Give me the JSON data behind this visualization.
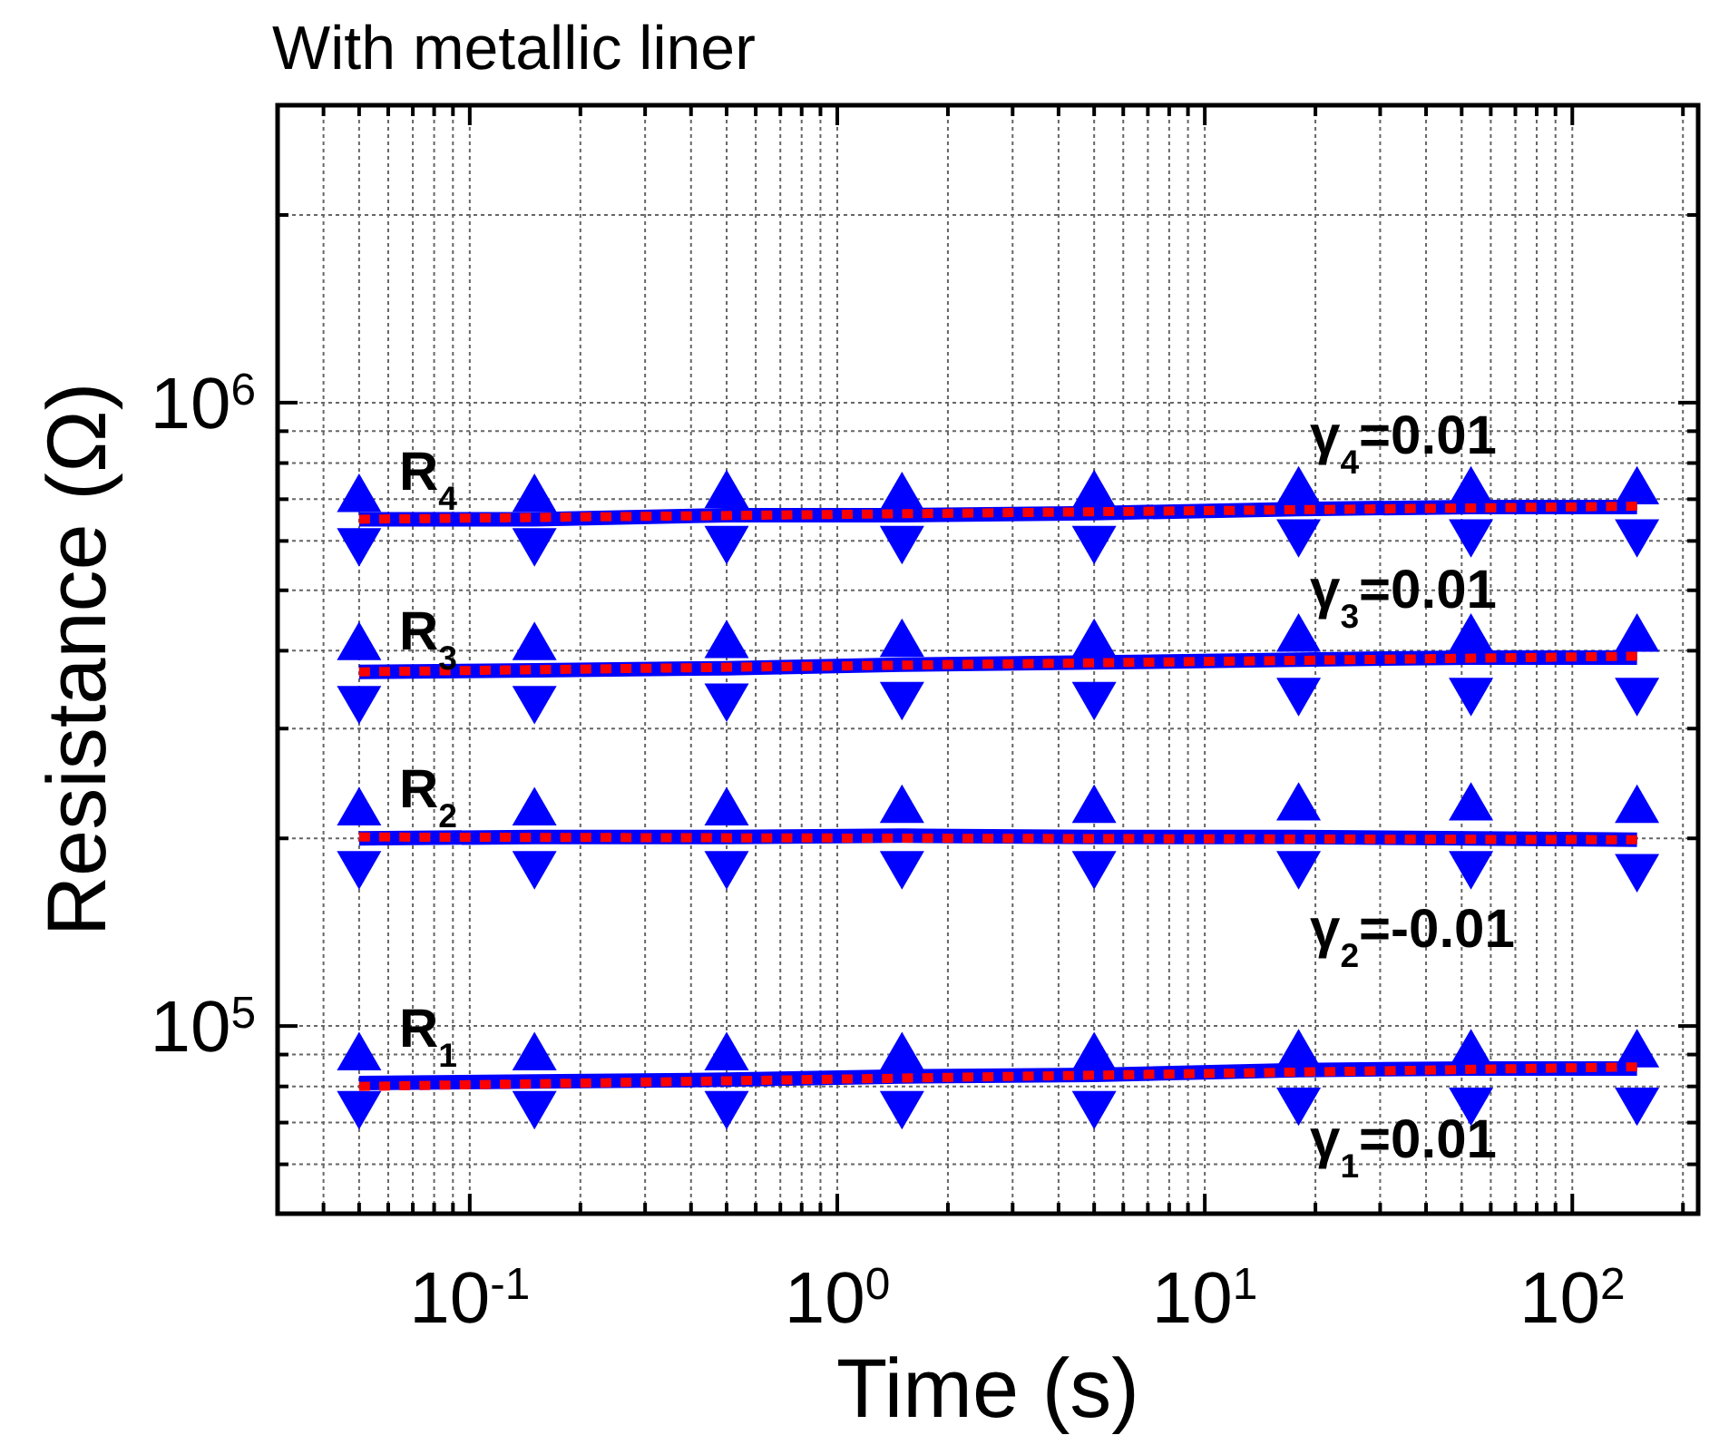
{
  "chart_data": {
    "type": "line",
    "title": "With metallic liner",
    "xlabel": "Time (s)",
    "ylabel": "Resistance (Ω)",
    "log": "xy",
    "grid": true,
    "xlim": [
      0.03,
      220
    ],
    "ylim": [
      50000,
      3000000
    ],
    "xticks": [
      {
        "value": 0.03,
        "label": null
      },
      {
        "value": 0.04,
        "label": null
      },
      {
        "value": 0.05,
        "label": null
      },
      {
        "value": 0.06,
        "label": null
      },
      {
        "value": 0.07,
        "label": null
      },
      {
        "value": 0.08,
        "label": null
      },
      {
        "value": 0.09,
        "label": null
      },
      {
        "value": 0.1,
        "label": "10$^{-1}$"
      },
      {
        "value": 0.2,
        "label": null
      },
      {
        "value": 0.3,
        "label": null
      },
      {
        "value": 0.4,
        "label": null
      },
      {
        "value": 0.5,
        "label": null
      },
      {
        "value": 0.6,
        "label": null
      },
      {
        "value": 0.7,
        "label": null
      },
      {
        "value": 0.8,
        "label": null
      },
      {
        "value": 0.9,
        "label": null
      },
      {
        "value": 1,
        "label": "10$^{0}$"
      },
      {
        "value": 2,
        "label": null
      },
      {
        "value": 3,
        "label": null
      },
      {
        "value": 4,
        "label": null
      },
      {
        "value": 5,
        "label": null
      },
      {
        "value": 6,
        "label": null
      },
      {
        "value": 7,
        "label": null
      },
      {
        "value": 8,
        "label": null
      },
      {
        "value": 9,
        "label": null
      },
      {
        "value": 10,
        "label": "10$^{1}$"
      },
      {
        "value": 20,
        "label": null
      },
      {
        "value": 30,
        "label": null
      },
      {
        "value": 40,
        "label": null
      },
      {
        "value": 50,
        "label": null
      },
      {
        "value": 60,
        "label": null
      },
      {
        "value": 70,
        "label": null
      },
      {
        "value": 80,
        "label": null
      },
      {
        "value": 90,
        "label": null
      },
      {
        "value": 100,
        "label": "10$^{2}$"
      },
      {
        "value": 200,
        "label": null
      }
    ],
    "yticks": [
      {
        "value": 50000,
        "label": null
      },
      {
        "value": 60000,
        "label": null
      },
      {
        "value": 70000,
        "label": null
      },
      {
        "value": 80000,
        "label": null
      },
      {
        "value": 90000,
        "label": null
      },
      {
        "value": 100000,
        "label": "10$^{5}$"
      },
      {
        "value": 200000,
        "label": null
      },
      {
        "value": 300000,
        "label": null
      },
      {
        "value": 400000,
        "label": null
      },
      {
        "value": 500000,
        "label": null
      },
      {
        "value": 600000,
        "label": null
      },
      {
        "value": 700000,
        "label": null
      },
      {
        "value": 800000,
        "label": null
      },
      {
        "value": 900000,
        "label": null
      },
      {
        "value": 1000000,
        "label": "10$^{6}$"
      },
      {
        "value": 2000000,
        "label": null
      },
      {
        "value": 3000000,
        "label": null
      }
    ],
    "series": [
      {
        "color": "#0000ff",
        "line_style": "solid",
        "x": [
          0.05,
          0.15,
          0.5,
          1.5,
          5,
          18,
          53,
          150
        ],
        "values": [
          81000,
          81500,
          82000,
          83000,
          83500,
          85000,
          85500,
          85500
        ]
      },
      {
        "type": "scatter",
        "color": "#0000ff",
        "marker": "triangle",
        "x": [
          0.05,
          0.15,
          0.5,
          1.5,
          5,
          18,
          53,
          150
        ],
        "values": [
          89000,
          89000,
          89000,
          89000,
          89000,
          90000,
          90000,
          90000
        ]
      },
      {
        "type": "scatter",
        "color": "#0000ff",
        "marker": "triangle",
        "x": [
          0.05,
          0.15,
          0.5,
          1.5,
          5,
          18,
          53,
          150
        ],
        "values": [
          75000,
          75000,
          75000,
          75000,
          75000,
          76000,
          76000,
          76000
        ]
      },
      {
        "color": "#0000ff",
        "line_style": "solid",
        "x": [
          0.05,
          0.15,
          0.5,
          1.5,
          5,
          18,
          53,
          150
        ],
        "values": [
          200000,
          201000,
          201000,
          202000,
          201000,
          201000,
          200000,
          199000
        ]
      },
      {
        "type": "scatter",
        "color": "#0000ff",
        "marker": "triangle",
        "x": [
          0.05,
          0.15,
          0.5,
          1.5,
          5,
          18,
          53,
          150
        ],
        "values": [
          220000,
          220000,
          220000,
          222000,
          222000,
          224000,
          224000,
          222000
        ]
      },
      {
        "type": "scatter",
        "color": "#0000ff",
        "marker": "triangle",
        "x": [
          0.05,
          0.15,
          0.5,
          1.5,
          5,
          18,
          53,
          150
        ],
        "values": [
          182000,
          182000,
          182000,
          182000,
          182000,
          182000,
          182000,
          180000
        ]
      },
      {
        "color": "#0000ff",
        "line_style": "solid",
        "x": [
          0.05,
          0.15,
          0.5,
          1.5,
          5,
          18,
          53,
          150
        ],
        "values": [
          370000,
          372000,
          375000,
          380000,
          383000,
          387000,
          390000,
          390000
        ]
      },
      {
        "type": "scatter",
        "color": "#0000ff",
        "marker": "triangle",
        "x": [
          0.05,
          0.15,
          0.5,
          1.5,
          5,
          18,
          53,
          150
        ],
        "values": [
          405000,
          405000,
          408000,
          410000,
          410000,
          418000,
          418000,
          418000
        ]
      },
      {
        "type": "scatter",
        "color": "#0000ff",
        "marker": "triangle",
        "x": [
          0.05,
          0.15,
          0.5,
          1.5,
          5,
          18,
          53,
          150
        ],
        "values": [
          335000,
          335000,
          338000,
          340000,
          340000,
          345000,
          345000,
          345000
        ]
      },
      {
        "color": "#0000ff",
        "line_style": "solid",
        "x": [
          0.05,
          0.15,
          0.5,
          1.5,
          5,
          18,
          53,
          150
        ],
        "values": [
          650000,
          650000,
          660000,
          660000,
          665000,
          675000,
          680000,
          680000
        ]
      },
      {
        "type": "scatter",
        "color": "#0000ff",
        "marker": "triangle",
        "x": [
          0.05,
          0.15,
          0.5,
          1.5,
          5,
          18,
          53,
          150
        ],
        "values": [
          700000,
          700000,
          710000,
          705000,
          710000,
          720000,
          720000,
          720000
        ]
      },
      {
        "type": "scatter",
        "color": "#0000ff",
        "marker": "triangle",
        "x": [
          0.05,
          0.15,
          0.5,
          1.5,
          5,
          18,
          53,
          150
        ],
        "values": [
          600000,
          600000,
          605000,
          605000,
          605000,
          620000,
          620000,
          620000
        ]
      },
      {
        "color": "#ff0000",
        "line_style": "dotted",
        "x": [
          0.05,
          150
        ],
        "values": [
          80000,
          86000
        ]
      },
      {
        "color": "#ff0000",
        "line_style": "dotted",
        "x": [
          0.05,
          150
        ],
        "values": [
          201000,
          199000
        ]
      },
      {
        "color": "#ff0000",
        "line_style": "dotted",
        "x": [
          0.05,
          150
        ],
        "values": [
          370000,
          392000
        ]
      },
      {
        "color": "#ff0000",
        "line_style": "dotted",
        "x": [
          0.05,
          150
        ],
        "values": [
          650000,
          682000
        ]
      }
    ],
    "annotations": [
      "R$_{1}$",
      "R$_{2}$",
      "R$_{3}$",
      "R$_{4}$",
      "γ$_{1}$=0.01",
      "γ$_{2}$=-0.01",
      "γ$_{3}$=0.01",
      "γ$_{4}$=0.01"
    ]
  }
}
